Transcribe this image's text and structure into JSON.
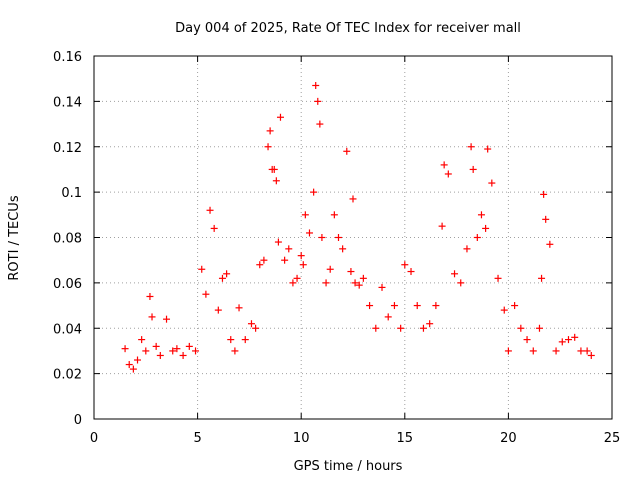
{
  "chart_data": {
    "type": "scatter",
    "title": "Day 004 of 2025, Rate Of TEC Index for receiver mall",
    "xlabel": "GPS time / hours",
    "ylabel": "ROTI / TECUs",
    "xlim": [
      0,
      25
    ],
    "ylim": [
      0,
      0.16
    ],
    "xticks": [
      "0",
      "5",
      "10",
      "15",
      "20",
      "25"
    ],
    "yticks": [
      "0",
      "0.02",
      "0.04",
      "0.06",
      "0.08",
      "0.1",
      "0.12",
      "0.14",
      "0.16"
    ],
    "grid": true,
    "marker": "+",
    "color": "#ff0000",
    "series": [
      {
        "x": [
          1.5,
          1.7,
          1.9,
          2.1,
          2.3,
          2.5,
          2.7,
          2.8,
          3.0,
          3.2,
          3.5,
          3.8,
          4.0,
          4.3,
          4.6,
          4.9,
          5.2,
          5.4,
          5.6,
          5.8,
          6.0,
          6.2,
          6.4,
          6.6,
          6.8,
          7.0,
          7.3,
          7.6,
          7.8,
          8.0,
          8.2,
          8.4,
          8.5,
          8.6,
          8.7,
          8.8,
          8.9,
          9.0,
          9.2,
          9.4,
          9.6,
          9.8,
          10.0,
          10.1,
          10.2,
          10.4,
          10.6,
          10.7,
          10.8,
          10.9,
          11.0,
          11.2,
          11.4,
          11.6,
          11.8,
          12.0,
          12.2,
          12.4,
          12.5,
          12.6,
          12.8,
          13.0,
          13.3,
          13.6,
          13.9,
          14.2,
          14.5,
          14.8,
          15.0,
          15.3,
          15.6,
          15.9,
          16.2,
          16.5,
          16.8,
          16.9,
          17.1,
          17.4,
          17.7,
          18.0,
          18.2,
          18.3,
          18.5,
          18.7,
          18.9,
          19.0,
          19.2,
          19.5,
          19.8,
          20.0,
          20.3,
          20.6,
          20.9,
          21.2,
          21.5,
          21.6,
          21.7,
          21.8,
          22.0,
          22.3,
          22.6,
          22.9,
          23.2,
          23.5,
          23.8,
          24.0
        ],
        "y": [
          0.031,
          0.024,
          0.022,
          0.026,
          0.035,
          0.03,
          0.054,
          0.045,
          0.032,
          0.028,
          0.044,
          0.03,
          0.031,
          0.028,
          0.032,
          0.03,
          0.066,
          0.055,
          0.092,
          0.084,
          0.048,
          0.062,
          0.064,
          0.035,
          0.03,
          0.049,
          0.035,
          0.042,
          0.04,
          0.068,
          0.07,
          0.12,
          0.127,
          0.11,
          0.11,
          0.105,
          0.078,
          0.133,
          0.07,
          0.075,
          0.06,
          0.062,
          0.072,
          0.068,
          0.09,
          0.082,
          0.1,
          0.147,
          0.14,
          0.13,
          0.08,
          0.06,
          0.066,
          0.09,
          0.08,
          0.075,
          0.118,
          0.065,
          0.097,
          0.06,
          0.059,
          0.062,
          0.05,
          0.04,
          0.058,
          0.045,
          0.05,
          0.04,
          0.068,
          0.065,
          0.05,
          0.04,
          0.042,
          0.05,
          0.085,
          0.112,
          0.108,
          0.064,
          0.06,
          0.075,
          0.12,
          0.11,
          0.08,
          0.09,
          0.084,
          0.119,
          0.104,
          0.062,
          0.048,
          0.03,
          0.05,
          0.04,
          0.035,
          0.03,
          0.04,
          0.062,
          0.099,
          0.088,
          0.077,
          0.03,
          0.034,
          0.035,
          0.036,
          0.03,
          0.03,
          0.028
        ]
      }
    ]
  }
}
